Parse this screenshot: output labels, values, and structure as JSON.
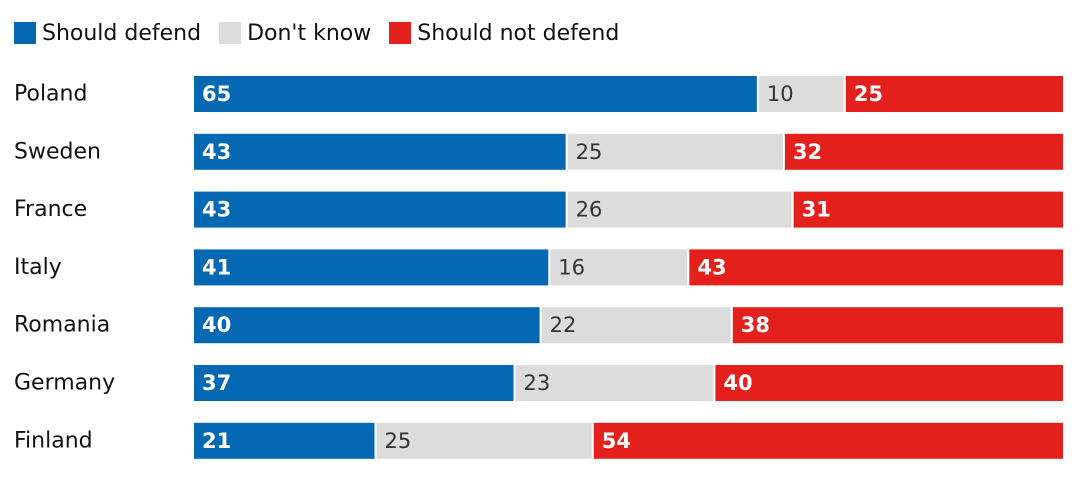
{
  "chart_data": {
    "type": "bar",
    "orientation": "horizontal",
    "stacked": true,
    "categories": [
      "Poland",
      "Sweden",
      "France",
      "Italy",
      "Romania",
      "Germany",
      "Finland"
    ],
    "series": [
      {
        "name": "Should defend",
        "color": "#0568b3",
        "values": [
          65,
          43,
          43,
          41,
          40,
          37,
          21
        ]
      },
      {
        "name": "Don't know",
        "color": "#dcdcdc",
        "values": [
          10,
          25,
          26,
          16,
          22,
          23,
          25
        ]
      },
      {
        "name": "Should not defend",
        "color": "#e3201b",
        "values": [
          25,
          32,
          31,
          43,
          38,
          40,
          54
        ]
      }
    ],
    "xlim": [
      0,
      100
    ],
    "legend_position": "top-left",
    "grid": false
  }
}
